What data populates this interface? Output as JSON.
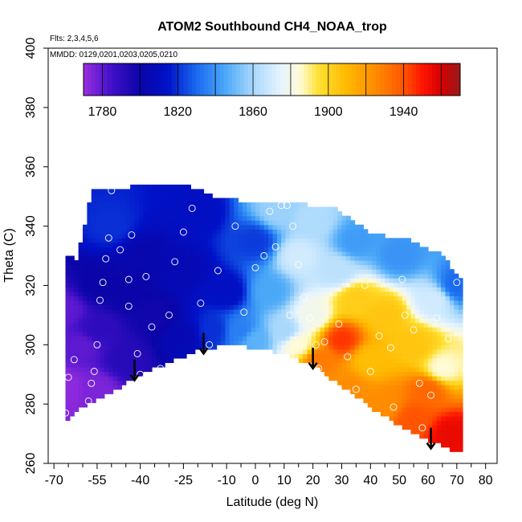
{
  "chart_data": {
    "type": "heatmap",
    "title": "ATOM2 Southbound CH4_NOAA_trop",
    "annotations": [
      "Flts: 2,3,4,5,6",
      "MMDD: 0129,0201,0203,0205,0210"
    ],
    "xlabel": "Latitude (deg N)",
    "ylabel": "Theta (C)",
    "xlim": [
      -72,
      84
    ],
    "ylim": [
      260,
      400
    ],
    "x_ticks": [
      -70,
      -55,
      -40,
      -25,
      -10,
      0,
      10,
      20,
      30,
      40,
      50,
      60,
      70,
      80
    ],
    "x_tick_labels": [
      "-70",
      "-55",
      "-40",
      "-25",
      "-10",
      "0",
      "10",
      "20",
      "30",
      "40",
      "50",
      "60",
      "70",
      "80"
    ],
    "x_minor_ticks": [
      -65,
      -60,
      -50,
      -45,
      -35,
      -30,
      -20,
      -15,
      -5,
      5,
      15,
      25,
      35,
      45,
      55,
      65,
      75
    ],
    "y_ticks": [
      260,
      280,
      300,
      320,
      340,
      360,
      380,
      400
    ],
    "y_tick_labels": [
      "260",
      "280",
      "300",
      "320",
      "340",
      "360",
      "380",
      "400"
    ],
    "colorbar": {
      "range": [
        1770,
        1970
      ],
      "ticks": [
        1780,
        1820,
        1860,
        1900,
        1940
      ],
      "tick_labels": [
        "1780",
        "1820",
        "1860",
        "1900",
        "1940"
      ],
      "boundaries": [
        1780,
        1800,
        1820,
        1840,
        1860,
        1880,
        1900,
        1920,
        1940,
        1960
      ],
      "stops": [
        {
          "v": 1770,
          "c": "#9a2ee0"
        },
        {
          "v": 1785,
          "c": "#4010c8"
        },
        {
          "v": 1800,
          "c": "#0a05a8"
        },
        {
          "v": 1815,
          "c": "#0012c8"
        },
        {
          "v": 1830,
          "c": "#1a6af0"
        },
        {
          "v": 1845,
          "c": "#4aa8f8"
        },
        {
          "v": 1860,
          "c": "#a8d8fc"
        },
        {
          "v": 1875,
          "c": "#e6f4ff"
        },
        {
          "v": 1885,
          "c": "#fffbd8"
        },
        {
          "v": 1895,
          "c": "#ffe030"
        },
        {
          "v": 1910,
          "c": "#ffb800"
        },
        {
          "v": 1925,
          "c": "#ff8c00"
        },
        {
          "v": 1940,
          "c": "#ff5500"
        },
        {
          "v": 1950,
          "c": "#ff1500"
        },
        {
          "v": 1960,
          "c": "#d40000"
        },
        {
          "v": 1970,
          "c": "#9a1a1a"
        }
      ]
    },
    "field_anchors": [
      {
        "lat": -66,
        "theta": 285,
        "ch4": 1772
      },
      {
        "lat": -66,
        "theta": 312,
        "ch4": 1780
      },
      {
        "lat": -60,
        "theta": 300,
        "ch4": 1780
      },
      {
        "lat": -55,
        "theta": 285,
        "ch4": 1775
      },
      {
        "lat": -55,
        "theta": 305,
        "ch4": 1790
      },
      {
        "lat": -55,
        "theta": 320,
        "ch4": 1800
      },
      {
        "lat": -50,
        "theta": 340,
        "ch4": 1820
      },
      {
        "lat": -45,
        "theta": 295,
        "ch4": 1792
      },
      {
        "lat": -45,
        "theta": 318,
        "ch4": 1800
      },
      {
        "lat": -40,
        "theta": 330,
        "ch4": 1803
      },
      {
        "lat": -35,
        "theta": 310,
        "ch4": 1798
      },
      {
        "lat": -25,
        "theta": 303,
        "ch4": 1805
      },
      {
        "lat": -25,
        "theta": 325,
        "ch4": 1806
      },
      {
        "lat": -20,
        "theta": 345,
        "ch4": 1812
      },
      {
        "lat": -15,
        "theta": 305,
        "ch4": 1820
      },
      {
        "lat": -10,
        "theta": 318,
        "ch4": 1812
      },
      {
        "lat": -5,
        "theta": 305,
        "ch4": 1835
      },
      {
        "lat": 0,
        "theta": 335,
        "ch4": 1822
      },
      {
        "lat": 0,
        "theta": 302,
        "ch4": 1848
      },
      {
        "lat": 5,
        "theta": 318,
        "ch4": 1845
      },
      {
        "lat": 8,
        "theta": 345,
        "ch4": 1858
      },
      {
        "lat": 10,
        "theta": 305,
        "ch4": 1860
      },
      {
        "lat": 15,
        "theta": 330,
        "ch4": 1870
      },
      {
        "lat": 15,
        "theta": 300,
        "ch4": 1885
      },
      {
        "lat": 20,
        "theta": 342,
        "ch4": 1862
      },
      {
        "lat": 20,
        "theta": 310,
        "ch4": 1880
      },
      {
        "lat": 22,
        "theta": 295,
        "ch4": 1930
      },
      {
        "lat": 28,
        "theta": 325,
        "ch4": 1865
      },
      {
        "lat": 30,
        "theta": 302,
        "ch4": 1945
      },
      {
        "lat": 32,
        "theta": 285,
        "ch4": 1925
      },
      {
        "lat": 35,
        "theta": 335,
        "ch4": 1842
      },
      {
        "lat": 35,
        "theta": 315,
        "ch4": 1902
      },
      {
        "lat": 40,
        "theta": 295,
        "ch4": 1908
      },
      {
        "lat": 45,
        "theta": 310,
        "ch4": 1905
      },
      {
        "lat": 45,
        "theta": 280,
        "ch4": 1925
      },
      {
        "lat": 50,
        "theta": 330,
        "ch4": 1840
      },
      {
        "lat": 55,
        "theta": 300,
        "ch4": 1905
      },
      {
        "lat": 55,
        "theta": 275,
        "ch4": 1940
      },
      {
        "lat": 60,
        "theta": 285,
        "ch4": 1935
      },
      {
        "lat": 62,
        "theta": 315,
        "ch4": 1870
      },
      {
        "lat": 65,
        "theta": 292,
        "ch4": 1885
      },
      {
        "lat": 68,
        "theta": 270,
        "ch4": 1955
      },
      {
        "lat": 70,
        "theta": 320,
        "ch4": 1830
      }
    ],
    "data_top": [
      [
        -66,
        331
      ],
      [
        -62,
        328
      ],
      [
        -57,
        352
      ],
      [
        -50,
        352
      ],
      [
        -40,
        354
      ],
      [
        -30,
        354
      ],
      [
        -20,
        353
      ],
      [
        -15,
        350
      ],
      [
        -8,
        349
      ],
      [
        0,
        348
      ],
      [
        10,
        348
      ],
      [
        20,
        347
      ],
      [
        28,
        346
      ],
      [
        34,
        342
      ],
      [
        40,
        338
      ],
      [
        48,
        336
      ],
      [
        55,
        335
      ],
      [
        60,
        332
      ],
      [
        65,
        331
      ],
      [
        71,
        322
      ]
    ],
    "data_bottom": [
      [
        -66,
        274
      ],
      [
        -60,
        279
      ],
      [
        -50,
        284
      ],
      [
        -40,
        290
      ],
      [
        -30,
        294
      ],
      [
        -20,
        298
      ],
      [
        -10,
        300
      ],
      [
        0,
        299
      ],
      [
        10,
        297
      ],
      [
        20,
        293
      ],
      [
        30,
        286
      ],
      [
        40,
        279
      ],
      [
        50,
        273
      ],
      [
        60,
        268
      ],
      [
        67,
        265
      ],
      [
        71,
        264
      ]
    ],
    "samples": [
      [
        -66,
        277
      ],
      [
        -65,
        289
      ],
      [
        -63,
        295
      ],
      [
        -58,
        281
      ],
      [
        -57,
        287
      ],
      [
        -56,
        291
      ],
      [
        -55,
        300
      ],
      [
        -54,
        315
      ],
      [
        -53,
        321
      ],
      [
        -52,
        329
      ],
      [
        -51,
        336
      ],
      [
        -50,
        352
      ],
      [
        -47,
        332
      ],
      [
        -44,
        313
      ],
      [
        -44,
        322
      ],
      [
        -43,
        337
      ],
      [
        -41,
        297
      ],
      [
        -40,
        290
      ],
      [
        -38,
        323
      ],
      [
        -36,
        306
      ],
      [
        -33,
        292
      ],
      [
        -30,
        310
      ],
      [
        -28,
        328
      ],
      [
        -25,
        338
      ],
      [
        -22,
        346
      ],
      [
        -19,
        314
      ],
      [
        -16,
        300
      ],
      [
        -13,
        325
      ],
      [
        -9,
        351
      ],
      [
        -7,
        340
      ],
      [
        -4,
        311
      ],
      [
        0,
        326
      ],
      [
        3,
        330
      ],
      [
        5,
        345
      ],
      [
        7,
        333
      ],
      [
        9,
        347
      ],
      [
        11,
        347
      ],
      [
        12,
        310
      ],
      [
        13,
        340
      ],
      [
        15,
        327
      ],
      [
        17,
        316
      ],
      [
        19,
        309
      ],
      [
        21,
        300
      ],
      [
        22,
        292
      ],
      [
        24,
        301
      ],
      [
        26,
        286
      ],
      [
        29,
        307
      ],
      [
        32,
        296
      ],
      [
        35,
        285
      ],
      [
        38,
        320
      ],
      [
        40,
        291
      ],
      [
        43,
        303
      ],
      [
        47,
        299
      ],
      [
        48,
        279
      ],
      [
        51,
        322
      ],
      [
        52,
        310
      ],
      [
        55,
        305
      ],
      [
        57,
        287
      ],
      [
        58,
        272
      ],
      [
        61,
        283
      ],
      [
        63,
        309
      ],
      [
        67,
        302
      ],
      [
        70,
        321
      ]
    ],
    "arrows": [
      {
        "lat": -42,
        "theta_top": 295,
        "theta_tip": 288
      },
      {
        "lat": -18,
        "theta_top": 304,
        "theta_tip": 297
      },
      {
        "lat": 20,
        "theta_top": 299,
        "theta_tip": 292
      },
      {
        "lat": 61,
        "theta_top": 272,
        "theta_tip": 265
      }
    ]
  }
}
